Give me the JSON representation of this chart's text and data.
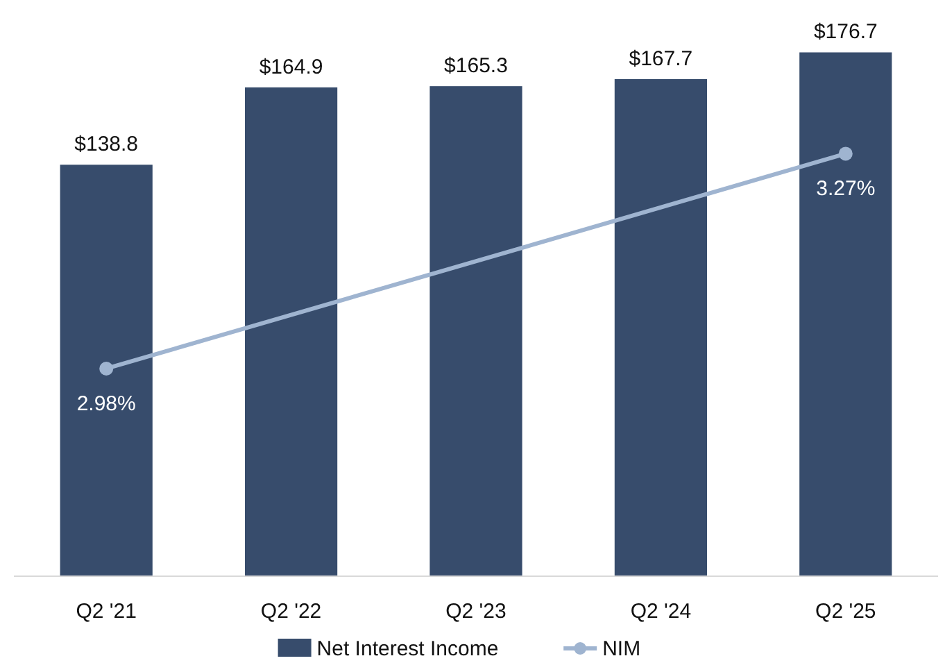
{
  "chart_data": {
    "type": "bar",
    "categories": [
      "Q2 '21",
      "Q2 '22",
      "Q2 '23",
      "Q2 '24",
      "Q2 '25"
    ],
    "series": [
      {
        "name": "Net Interest Income",
        "color": "#374c6c",
        "values": [
          138.8,
          164.9,
          165.3,
          167.7,
          176.7
        ],
        "value_labels": [
          "$138.8",
          "$164.9",
          "$165.3",
          "$167.7",
          "$176.7"
        ]
      },
      {
        "name": "NIM",
        "type": "line",
        "axis": "y2",
        "color": "#9fb4d0",
        "x": [
          "Q2 '21",
          "Q2 '25"
        ],
        "values": [
          2.98,
          3.27
        ],
        "value_labels": [
          "2.98%",
          "3.27%"
        ],
        "marker": "circle"
      }
    ],
    "tick_labels": "x",
    "legend": "bottom"
  }
}
